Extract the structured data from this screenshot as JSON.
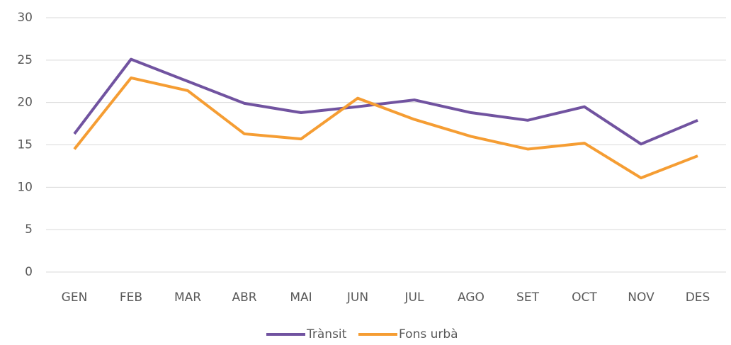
{
  "chart_data": {
    "type": "line",
    "categories": [
      "GEN",
      "FEB",
      "MAR",
      "ABR",
      "MAI",
      "JUN",
      "JUL",
      "AGO",
      "SET",
      "OCT",
      "NOV",
      "DES"
    ],
    "series": [
      {
        "name": "Trànsit",
        "color": "#7153a0",
        "values": [
          16.3,
          25.1,
          22.5,
          19.9,
          18.8,
          19.5,
          20.3,
          18.8,
          17.9,
          19.5,
          15.1,
          17.9
        ]
      },
      {
        "name": "Fons urbà",
        "color": "#f59d33",
        "values": [
          14.5,
          22.9,
          21.4,
          16.3,
          15.7,
          20.5,
          18.0,
          16.0,
          14.5,
          15.2,
          11.1,
          13.7
        ]
      }
    ],
    "ylim": [
      0,
      30
    ],
    "yticks": [
      0,
      5,
      10,
      15,
      20,
      25,
      30
    ],
    "grid": true,
    "legend": "bottom"
  }
}
